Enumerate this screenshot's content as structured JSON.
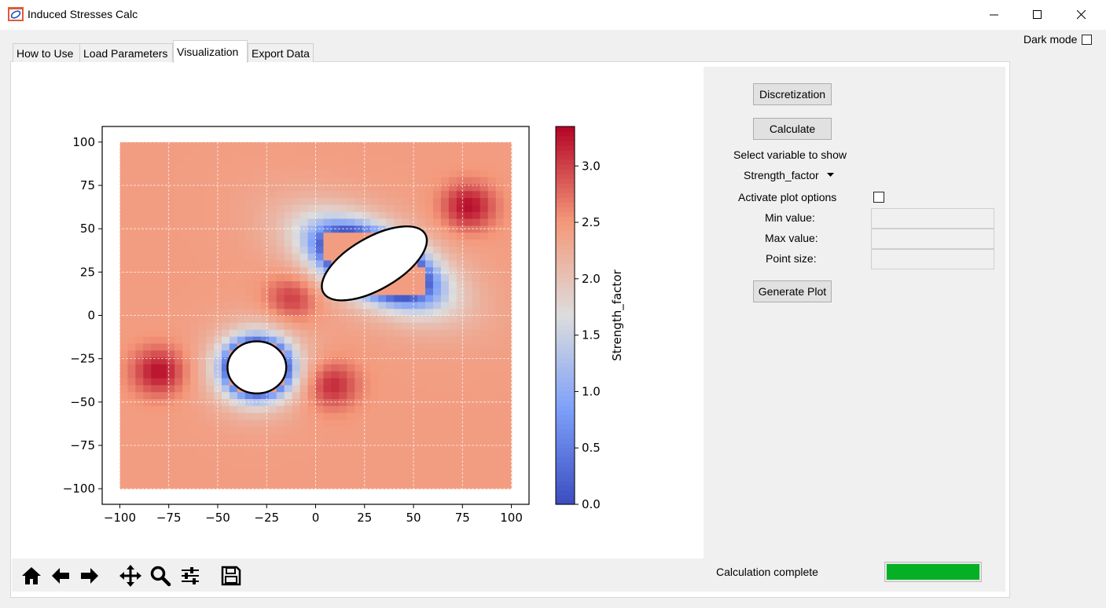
{
  "window": {
    "title": "Induced Stresses Calc",
    "dark_mode_label": "Dark mode"
  },
  "tabs": [
    {
      "label": "How to Use"
    },
    {
      "label": "Load Parameters"
    },
    {
      "label": "Visualization"
    },
    {
      "label": "Export Data"
    }
  ],
  "active_tab": "Visualization",
  "panel": {
    "discretization_label": "Discretization",
    "calculate_label": "Calculate",
    "select_variable_label": "Select variable to show",
    "variable_value": "Strength_factor",
    "activate_options_label": "Activate plot options",
    "min_label": "Min value:",
    "max_label": "Max value:",
    "point_size_label": "Point size:",
    "min_value": "",
    "max_value": "",
    "point_size_value": "",
    "generate_label": "Generate Plot"
  },
  "status": {
    "text": "Calculation complete",
    "progress": 1.0,
    "progress_color": "#06b025"
  },
  "toolbar_icons": [
    "home-icon",
    "back-arrow-icon",
    "forward-arrow-icon",
    "pan-icon",
    "zoom-icon",
    "configure-subplots-icon",
    "save-icon"
  ],
  "chart_data": {
    "type": "heatmap",
    "x_ticks": [
      "−100",
      "−75",
      "−50",
      "−25",
      "0",
      "25",
      "50",
      "75",
      "100"
    ],
    "y_ticks": [
      "100",
      "75",
      "50",
      "25",
      "0",
      "−25",
      "−50",
      "−75",
      "−100"
    ],
    "xlim": [
      -109,
      109
    ],
    "ylim": [
      -109,
      109
    ],
    "grid": true,
    "colorbar_label": "Strength_factor",
    "colorbar_range": [
      0.0,
      3.35
    ],
    "colorbar_ticks": [
      "0.0",
      "0.5",
      "1.0",
      "1.5",
      "2.0",
      "2.5",
      "3.0"
    ],
    "colorbar_tick_values": [
      0.0,
      0.5,
      1.0,
      1.5,
      2.0,
      2.5,
      3.0
    ],
    "colormap": "coolwarm",
    "colors": {
      "low": "#3b4cc0",
      "mid": "#dddddd",
      "high": "#b40426"
    },
    "openings": [
      {
        "shape": "ellipse",
        "center": [
          -30,
          -30
        ],
        "semi_axes": [
          15,
          15
        ],
        "rotation_deg": 0
      },
      {
        "shape": "ellipse",
        "center": [
          30,
          30
        ],
        "semi_axes": [
          30,
          15
        ],
        "rotation_deg": -30
      }
    ],
    "hotspots": [
      {
        "x": -80,
        "y": -32,
        "value": 3.3
      },
      {
        "x": -12,
        "y": 10,
        "value": 3.1
      },
      {
        "x": 8,
        "y": -40,
        "value": 3.2
      },
      {
        "x": 78,
        "y": 63,
        "value": 3.3
      }
    ]
  }
}
